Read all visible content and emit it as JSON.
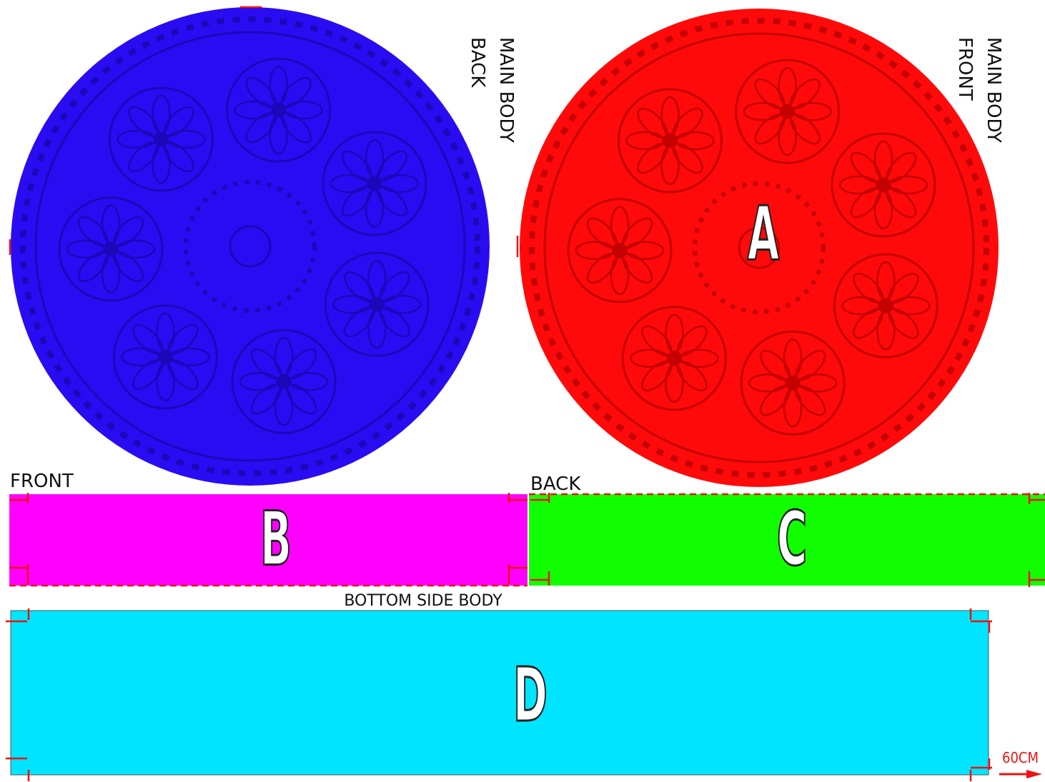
{
  "pieces": [
    {
      "label": "A",
      "title": [
        "MAIN BODY",
        "FRONT"
      ]
    },
    {
      "title": [
        "MAIN BODY",
        "BACK"
      ]
    },
    {
      "label": "B",
      "title": "FRONT"
    },
    {
      "label": "C",
      "title": "BACK"
    },
    {
      "label": "D",
      "title": "BOTTOM SIDE BODY"
    }
  ],
  "scale_note": "60CM"
}
